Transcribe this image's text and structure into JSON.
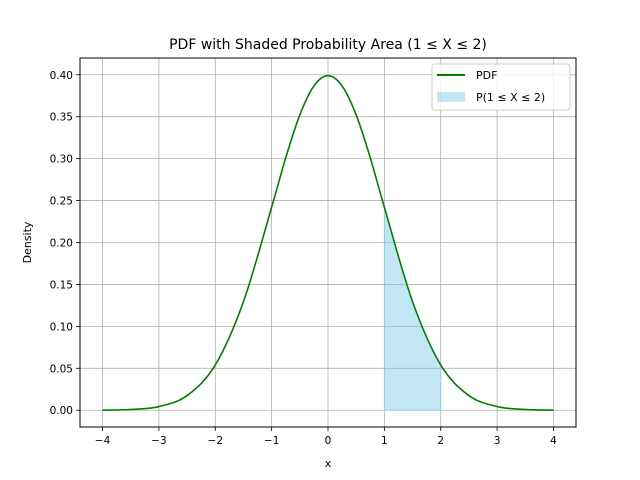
{
  "chart_data": {
    "type": "area",
    "title": "PDF with Shaded Probability Area (1 ≤ X ≤ 2)",
    "xlabel": "x",
    "ylabel": "Density",
    "xlim": [
      -4.4,
      4.4
    ],
    "ylim": [
      -0.02,
      0.42
    ],
    "xticks": [
      -4,
      -3,
      -2,
      -1,
      0,
      1,
      2,
      3,
      4
    ],
    "xtick_labels": [
      "−4",
      "−3",
      "−2",
      "−1",
      "0",
      "1",
      "2",
      "3",
      "4"
    ],
    "yticks": [
      0.0,
      0.05,
      0.1,
      0.15,
      0.2,
      0.25,
      0.3,
      0.35,
      0.4
    ],
    "ytick_labels": [
      "0.00",
      "0.05",
      "0.10",
      "0.15",
      "0.20",
      "0.25",
      "0.30",
      "0.35",
      "0.40"
    ],
    "grid": true,
    "legend_position": "top-right",
    "series": [
      {
        "name": "PDF",
        "kind": "line",
        "color": "#008000",
        "x": [
          -4.0,
          -3.5,
          -3.0,
          -2.5,
          -2.0,
          -1.5,
          -1.0,
          -0.75,
          -0.5,
          -0.25,
          0.0,
          0.25,
          0.5,
          0.75,
          1.0,
          1.5,
          2.0,
          2.5,
          3.0,
          3.5,
          4.0
        ],
        "y": [
          0.0001,
          0.0009,
          0.0044,
          0.0175,
          0.054,
          0.1295,
          0.242,
          0.3011,
          0.3521,
          0.3867,
          0.3989,
          0.3867,
          0.3521,
          0.3011,
          0.242,
          0.1295,
          0.054,
          0.0175,
          0.0044,
          0.0009,
          0.0001
        ]
      },
      {
        "name": "P(1 ≤ X ≤ 2)",
        "kind": "area",
        "color": "#87ceeb",
        "x": [
          1.0,
          1.25,
          1.5,
          1.75,
          2.0
        ],
        "y": [
          0.242,
          0.1826,
          0.1295,
          0.0863,
          0.054
        ]
      }
    ]
  }
}
